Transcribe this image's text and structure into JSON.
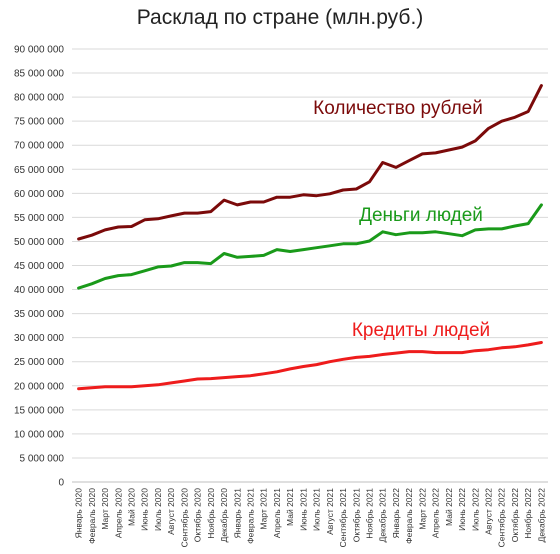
{
  "chart_data": {
    "type": "line",
    "title": "Расклад по стране (млн.руб.)",
    "xlabel": "",
    "ylabel": "",
    "ylim": [
      0,
      90000000
    ],
    "yticks": [
      "0",
      "5 000 000",
      "10 000 000",
      "15 000 000",
      "20 000 000",
      "25 000 000",
      "30 000 000",
      "35 000 000",
      "40 000 000",
      "45 000 000",
      "50 000 000",
      "55 000 000",
      "60 000 000",
      "65 000 000",
      "70 000 000",
      "75 000 000",
      "80 000 000",
      "85 000 000",
      "90 000 000"
    ],
    "grid": true,
    "legend": "none",
    "categories": [
      "Январь 2020",
      "Февраль 2020",
      "Март 2020",
      "Апрель 2020",
      "Май 2020",
      "Июнь 2020",
      "Июль 2020",
      "Август 2020",
      "Сентябрь 2020",
      "Октябрь 2020",
      "Ноябрь 2020",
      "Декабрь 2020",
      "Январь 2021",
      "Февраль 2021",
      "Март 2021",
      "Апрель 2021",
      "Май 2021",
      "Июнь 2021",
      "Июль 2021",
      "Август 2021",
      "Сентябрь 2021",
      "Октябрь 2021",
      "Ноябрь 2021",
      "Декабрь 2021",
      "Январь 2022",
      "Февраль 2022",
      "Март 2022",
      "Апрель 2022",
      "Май 2022",
      "Июнь 2022",
      "Июль 2022",
      "Август 2022",
      "Сентябрь 2022",
      "Октябрь 2022",
      "Ноябрь 2022",
      "Декабрь 2022"
    ],
    "series": [
      {
        "name": "Количество рублей",
        "color": "#7b0a0a",
        "values": [
          50500000,
          51300000,
          52400000,
          53000000,
          53100000,
          54500000,
          54700000,
          55300000,
          55900000,
          55900000,
          56200000,
          58600000,
          57600000,
          58200000,
          58200000,
          59200000,
          59200000,
          59700000,
          59500000,
          59900000,
          60700000,
          60900000,
          62400000,
          66400000,
          65400000,
          66800000,
          68200000,
          68400000,
          69000000,
          69600000,
          70900000,
          73500000,
          75000000,
          75800000,
          77000000,
          82400000
        ]
      },
      {
        "name": "Деньги людей",
        "color": "#1a9a1a",
        "values": [
          40300000,
          41200000,
          42300000,
          42900000,
          43100000,
          43900000,
          44700000,
          44900000,
          45600000,
          45600000,
          45400000,
          47500000,
          46700000,
          46900000,
          47100000,
          48300000,
          47900000,
          48300000,
          48700000,
          49100000,
          49500000,
          49500000,
          50100000,
          52000000,
          51400000,
          51800000,
          51800000,
          52000000,
          51600000,
          51200000,
          52400000,
          52600000,
          52600000,
          53200000,
          53700000,
          57600000
        ]
      },
      {
        "name": "Кредиты людей",
        "color": "#ee1c1c",
        "values": [
          19400000,
          19600000,
          19800000,
          19800000,
          19800000,
          20000000,
          20200000,
          20600000,
          21000000,
          21400000,
          21500000,
          21700000,
          21900000,
          22100000,
          22500000,
          22900000,
          23500000,
          24000000,
          24400000,
          25000000,
          25500000,
          25900000,
          26100000,
          26500000,
          26800000,
          27100000,
          27100000,
          26900000,
          26900000,
          26900000,
          27300000,
          27500000,
          27900000,
          28100000,
          28500000,
          29000000
        ]
      }
    ]
  }
}
